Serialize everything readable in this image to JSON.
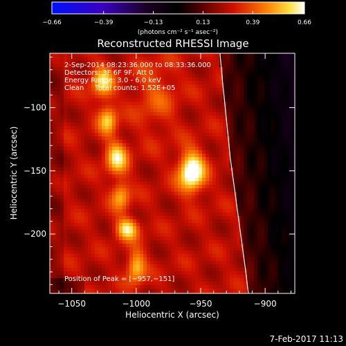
{
  "chart_data": {
    "type": "heatmap",
    "title": "Reconstructed RHESSI Image",
    "xlabel": "Heliocentric X (arcsec)",
    "ylabel": "Heliocentric Y (arcsec)",
    "xlim": [
      -1067,
      -877
    ],
    "ylim": [
      -247,
      -57
    ],
    "x_ticks": [
      -1050,
      -1000,
      -950,
      -900
    ],
    "x_tick_labels": [
      "−1050",
      "−1000",
      "−950",
      "−900"
    ],
    "y_ticks": [
      -100,
      -150,
      -200
    ],
    "y_tick_labels": [
      "−100",
      "−150",
      "−200"
    ],
    "colorbar": {
      "min": -0.66,
      "max": 0.66,
      "ticks": [
        -0.66,
        -0.39,
        -0.13,
        0.13,
        0.39,
        0.66
      ],
      "tick_labels": [
        "−0.66",
        "−0.39",
        "−0.13",
        "0.13",
        "0.39",
        "0.66"
      ],
      "units": "(photons cm⁻² s⁻¹ asec⁻²)"
    },
    "annotations": [
      " 2-Sep-2014 08:23:36.000 to 08:33:36.000",
      "Detectors: 3F 6F 9F, Att 0",
      "Energy Range: 3.0 - 6.0 keV",
      "Clean     Total counts: 1.52E+05"
    ],
    "peak_label": "Position of Peak = [−957,−151]",
    "peak": {
      "x": -957,
      "y": -151,
      "value": 0.66
    },
    "sources": [
      {
        "x": -957,
        "y": -151,
        "sx": 7,
        "sy": 11,
        "amp": 0.5
      },
      {
        "x": -1026,
        "y": -80,
        "sx": 6,
        "sy": 9,
        "amp": 0.32
      },
      {
        "x": -1022,
        "y": -110,
        "sx": 5,
        "sy": 8,
        "amp": 0.3
      },
      {
        "x": -1015,
        "y": -140,
        "sx": 6,
        "sy": 9,
        "amp": 0.34
      },
      {
        "x": -1012,
        "y": -170,
        "sx": 5,
        "sy": 8,
        "amp": 0.26
      },
      {
        "x": -1007,
        "y": -196,
        "sx": 6,
        "sy": 6,
        "amp": 0.36
      },
      {
        "x": -1000,
        "y": -226,
        "sx": 5,
        "sy": 9,
        "amp": 0.3
      },
      {
        "x": -985,
        "y": -90,
        "sx": 12,
        "sy": 20,
        "amp": 0.12
      }
    ],
    "limb_curve": [
      [
        -935,
        -57
      ],
      [
        -933,
        -80
      ],
      [
        -930,
        -110
      ],
      [
        -927,
        -140
      ],
      [
        -923,
        -170
      ],
      [
        -919,
        -200
      ],
      [
        -915,
        -230
      ],
      [
        -913,
        -247
      ]
    ],
    "grid": false
  },
  "footer": {
    "date": "7-Feb-2017 11:13"
  }
}
